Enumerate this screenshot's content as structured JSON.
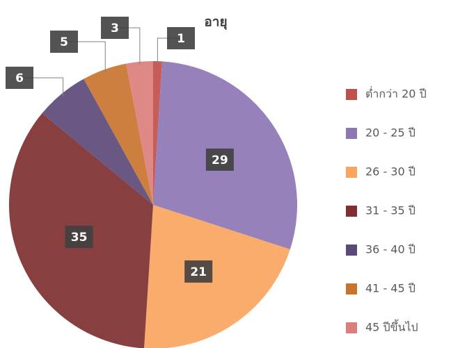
{
  "chart_data": {
    "type": "pie",
    "title": "อายุ",
    "categories": [
      "ต่ำกว่า 20 ปี",
      "20 - 25 ปี",
      "26 - 30 ปี",
      "31 - 35 ปี",
      "36 - 40 ปี",
      "41 - 45 ปี",
      "45 ปีขึ้นไป"
    ],
    "values": [
      1,
      29,
      21,
      35,
      6,
      5,
      3
    ],
    "colors": [
      "#c0504d",
      "#8e76b4",
      "#f9a55e",
      "#7e2f2f",
      "#5b4a78",
      "#c8742e",
      "#dc7f7c"
    ],
    "legend": "right"
  }
}
